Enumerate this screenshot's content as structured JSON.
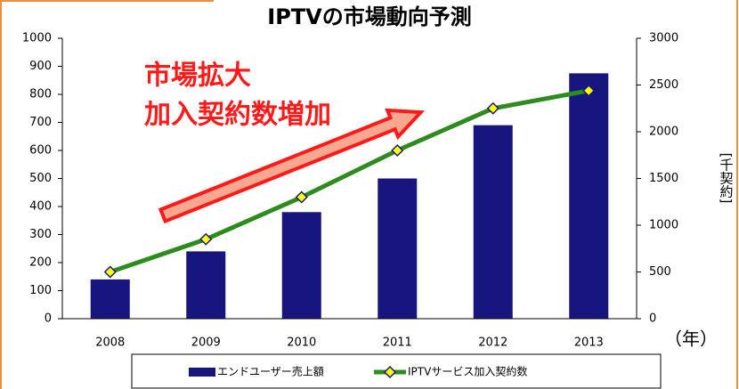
{
  "chart_data": {
    "type": "bar",
    "title": "IPTVの市場動向予測",
    "categories": [
      "2008",
      "2009",
      "2010",
      "2011",
      "2012",
      "2013"
    ],
    "series": [
      {
        "name": "エンドユーザー売上額",
        "color": "#16167e",
        "type": "bar",
        "values": [
          140,
          240,
          380,
          500,
          690,
          875
        ]
      },
      {
        "name": "IPTVサービス加入契約数",
        "color": "#2e8b1e",
        "type": "line",
        "axis": "y2",
        "values": [
          500,
          850,
          1300,
          1800,
          2250,
          2440
        ]
      }
    ],
    "ylim": [
      0,
      1000
    ],
    "yticks": [
      0,
      100,
      200,
      300,
      400,
      500,
      600,
      700,
      800,
      900,
      1000
    ],
    "y2lim": [
      0,
      3000
    ],
    "y2ticks": [
      0,
      500,
      1000,
      1500,
      2000,
      2500,
      3000
    ],
    "xlabel": "（年）",
    "y2label": "[千契約]",
    "annotations": [
      "市場拡大",
      "加入契約数増加"
    ],
    "legend": "bottom"
  }
}
